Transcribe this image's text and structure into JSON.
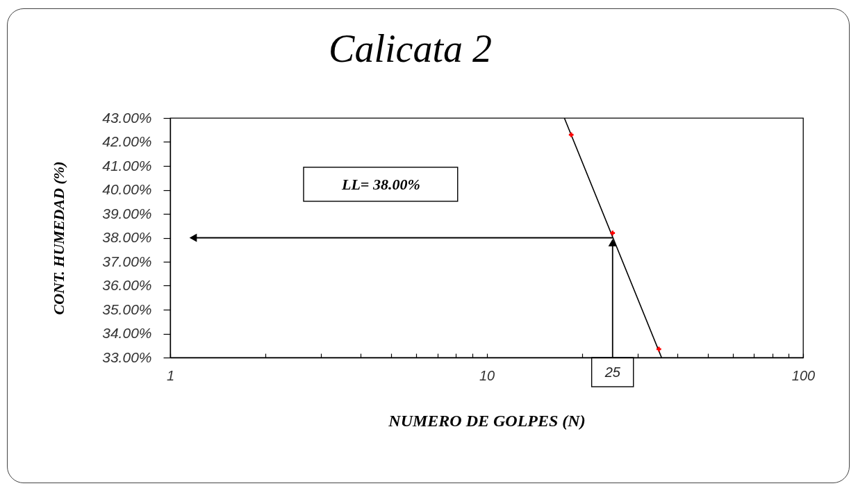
{
  "chart_data": {
    "type": "scatter",
    "title": "Calicata 2",
    "xlabel": "NUMERO DE GOLPES (N)",
    "ylabel": "CONT. HUMEDAD (%)",
    "annotations": [
      "LL= 38.00%"
    ],
    "series": [
      {
        "color": "#ff0000",
        "x": [
          18.5,
          25,
          35
        ],
        "values": [
          42.3,
          38.2,
          33.35
        ]
      },
      {
        "type": "line",
        "color": "#000000",
        "marker": "none",
        "x": [
          17.6,
          35.7
        ],
        "values": [
          43,
          33
        ]
      }
    ],
    "xlim": [
      1,
      100
    ],
    "ylim": [
      33,
      43
    ],
    "xticks": [
      1,
      {
        "value": 2,
        "label": null
      },
      {
        "value": 3,
        "label": null
      },
      {
        "value": 4,
        "label": null
      },
      {
        "value": 5,
        "label": null
      },
      {
        "value": 6,
        "label": null
      },
      {
        "value": 7,
        "label": null
      },
      {
        "value": 8,
        "label": null
      },
      {
        "value": 9,
        "label": null
      },
      10,
      {
        "value": 20,
        "label": null
      },
      {
        "value": 30,
        "label": null
      },
      {
        "value": 40,
        "label": null
      },
      {
        "value": 50,
        "label": null
      },
      {
        "value": 60,
        "label": null
      },
      {
        "value": 70,
        "label": null
      },
      {
        "value": 80,
        "label": null
      },
      {
        "value": 90,
        "label": null
      },
      100
    ],
    "yticks": [
      {
        "value": 33,
        "label": "33.00%"
      },
      {
        "value": 34,
        "label": "34.00%"
      },
      {
        "value": 35,
        "label": "35.00%"
      },
      {
        "value": 36,
        "label": "36.00%"
      },
      {
        "value": 37,
        "label": "37.00%"
      },
      {
        "value": 38,
        "label": "38.00%"
      },
      {
        "value": 39,
        "label": "39.00%"
      },
      {
        "value": 40,
        "label": "40.00%"
      },
      {
        "value": 41,
        "label": "41.00%"
      },
      {
        "value": 42,
        "label": "42.00%"
      },
      {
        "value": 43,
        "label": "43.00%"
      }
    ],
    "log": "x",
    "marker": "cross",
    "line_style": "solid",
    "ref_lines": [
      {
        "axis": "x",
        "value": 25,
        "label": "25"
      },
      {
        "axis": "y",
        "value": 38
      }
    ]
  }
}
